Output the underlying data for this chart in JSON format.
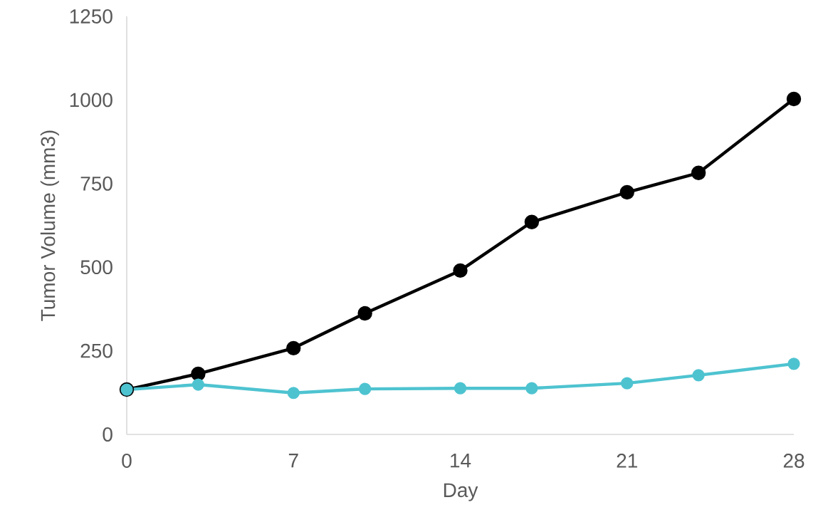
{
  "chart_data": {
    "type": "line",
    "xlabel": "Day",
    "ylabel": "Tumor Volume (mm3)",
    "x": [
      0,
      3,
      7,
      10,
      14,
      17,
      21,
      24,
      28
    ],
    "series": [
      {
        "color": "#000000",
        "values": [
          134,
          181,
          258,
          362,
          490,
          635,
          724,
          782,
          1003
        ]
      },
      {
        "color": "#4ec3d0",
        "values": [
          134,
          149,
          124,
          136,
          138,
          138,
          153,
          177,
          211
        ]
      }
    ],
    "xlim": [
      0,
      28
    ],
    "xticks": [
      0,
      7,
      14,
      21,
      28
    ],
    "ylim": [
      0,
      1250
    ],
    "yticks": [
      0,
      250,
      500,
      750,
      1000,
      1250
    ],
    "marker": "circle",
    "line_style": "solid"
  }
}
